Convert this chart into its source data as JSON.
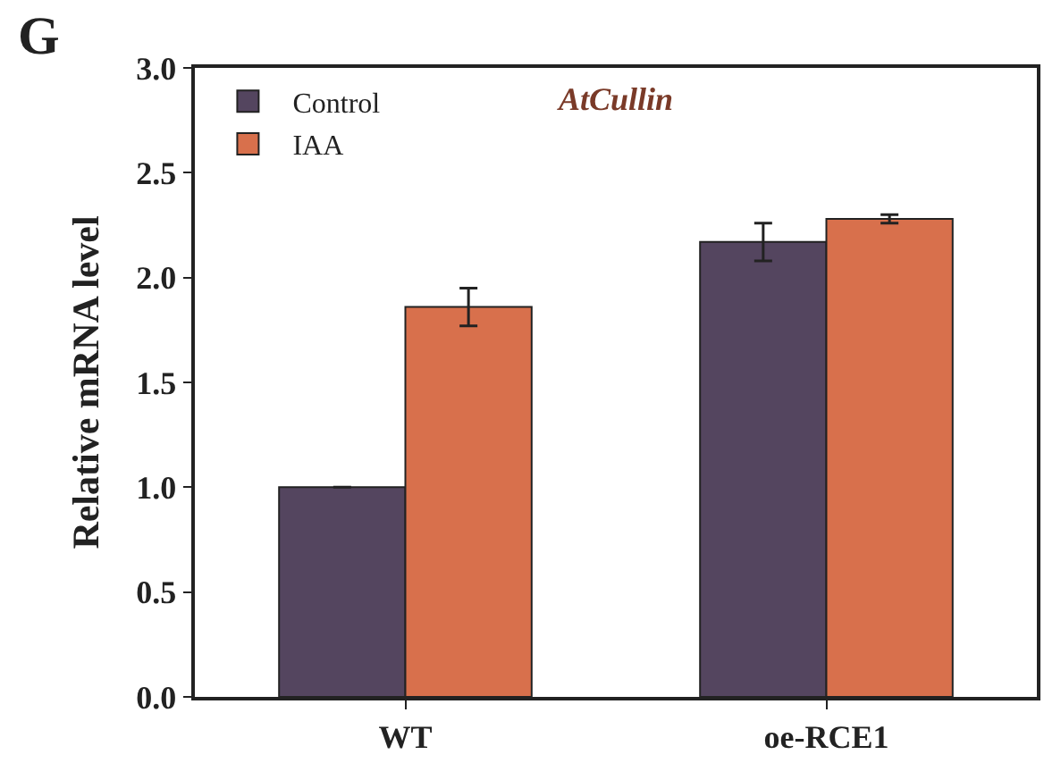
{
  "chart_data": {
    "type": "bar",
    "title": "AtCullin",
    "ylabel": "Relative mRNA level",
    "annotations": [
      "G"
    ],
    "categories": [
      "WT",
      "oe-RCE1"
    ],
    "series": [
      {
        "name": "Control",
        "color": "#54455f",
        "values": [
          1.0,
          2.17
        ],
        "errors": [
          null,
          0.09
        ]
      },
      {
        "name": "IAA",
        "color": "#d8704c",
        "values": [
          1.86,
          2.28
        ],
        "errors": [
          0.09,
          0.02
        ]
      }
    ],
    "ylim": [
      0,
      3
    ],
    "yticks": [
      {
        "value": 0,
        "label": "0.0"
      },
      {
        "value": 0.5,
        "label": "0.5"
      },
      {
        "value": 1,
        "label": "1.0"
      },
      {
        "value": 1.5,
        "label": "1.5"
      },
      {
        "value": 2,
        "label": "2.0"
      },
      {
        "value": 2.5,
        "label": "2.5"
      },
      {
        "value": 3,
        "label": "3.0"
      }
    ],
    "legend": "top left"
  }
}
